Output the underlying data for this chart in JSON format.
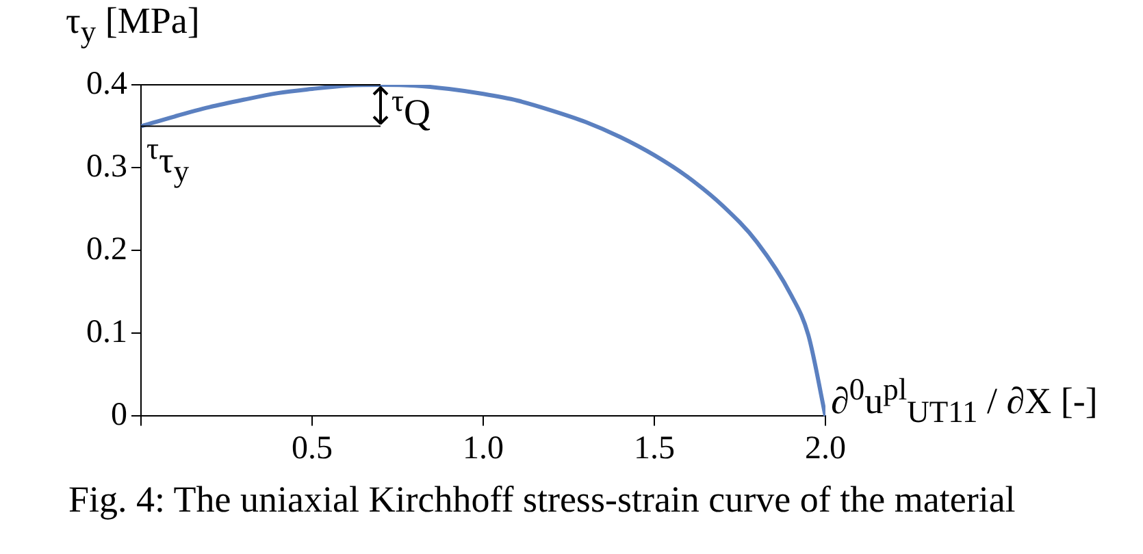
{
  "chart_data": {
    "type": "line",
    "xlabel": "∂$^{0}$u$^{pl}$$_{UT11}$ / ∂X [-]",
    "ylabel": "τ$_{y}$ [MPa]",
    "x": [
      0,
      0.1,
      0.2,
      0.3,
      0.4,
      0.5,
      0.6,
      0.7,
      0.8,
      0.9,
      1.0,
      1.1,
      1.2,
      1.3,
      1.4,
      1.5,
      1.6,
      1.7,
      1.8,
      1.9,
      1.95,
      2.0
    ],
    "series": [
      {
        "color": "#5b80c0",
        "values": [
          0.35,
          0.362,
          0.373,
          0.382,
          0.39,
          0.395,
          0.399,
          0.4,
          0.399,
          0.395,
          0.389,
          0.381,
          0.369,
          0.355,
          0.337,
          0.315,
          0.288,
          0.254,
          0.21,
          0.146,
          0.098,
          0
        ]
      }
    ],
    "xlim": [
      0,
      2.0
    ],
    "xticks": [
      {
        "value": 0,
        "label": null
      },
      {
        "value": 0.5,
        "label": "0.5"
      },
      {
        "value": 1.0,
        "label": "1.0"
      },
      {
        "value": 1.5,
        "label": "1.5"
      },
      {
        "value": 2.0,
        "label": "2.0"
      }
    ],
    "ylim": [
      0,
      0.4
    ],
    "yticks": [
      0,
      0.1,
      0.2,
      0.3,
      0.4
    ],
    "grid": false,
    "legend": false,
    "marker": "none",
    "line_style": "solid",
    "annotations": [
      {
        "text": "$^{τ}$Q",
        "x": 0.7,
        "y": 0.4
      },
      {
        "text": "$^{τ}$τ$_{y}$",
        "x": 0,
        "y": 0.35
      },
      "Fig. 4: The uniaxial Kirchhoff stress-strain curve of the material"
    ]
  }
}
